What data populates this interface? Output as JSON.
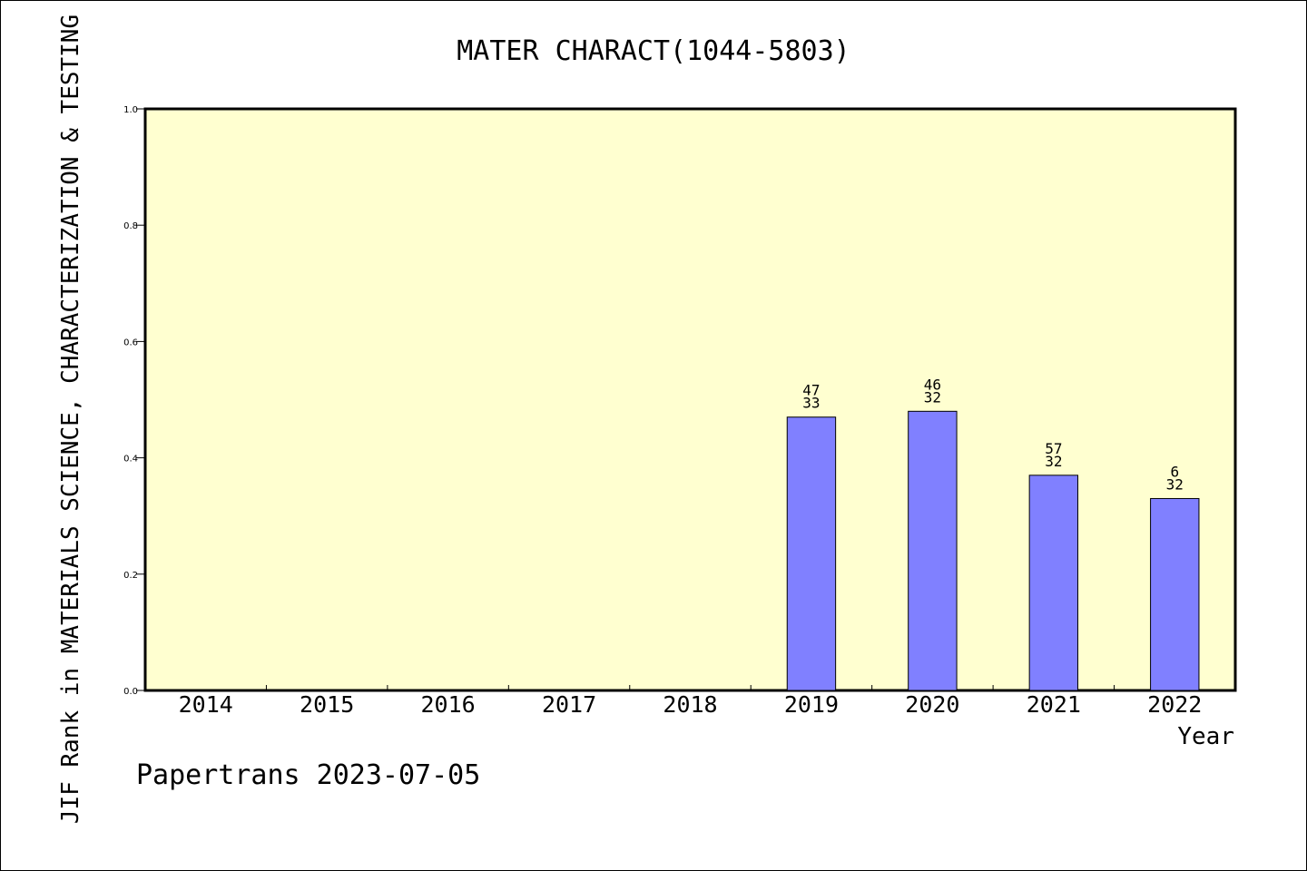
{
  "chart_data": {
    "type": "bar",
    "title": "MATER CHARACT(1044-5803)",
    "xlabel": "Year",
    "ylabel": "JIF Rank in MATERIALS SCIENCE, CHARACTERIZATION & TESTING",
    "footer": "Papertrans 2023-07-05",
    "categories": [
      "2014",
      "2015",
      "2016",
      "2017",
      "2018",
      "2019",
      "2020",
      "2021",
      "2022"
    ],
    "values": [
      null,
      null,
      null,
      null,
      null,
      0.47,
      0.48,
      0.37,
      0.33
    ],
    "bar_labels": [
      null,
      null,
      null,
      null,
      null,
      [
        "47",
        "33"
      ],
      [
        "46",
        "32"
      ],
      [
        "57",
        "32"
      ],
      [
        "6",
        "32"
      ]
    ],
    "ylim": [
      0,
      1.0
    ],
    "yticks": [
      "0.0",
      "0.2",
      "0.4",
      "0.6",
      "0.8",
      "1.0"
    ],
    "grid": false,
    "colors": {
      "plot_bg": "#ffffd0",
      "bar": "#8080ff",
      "axis": "#000000"
    }
  }
}
